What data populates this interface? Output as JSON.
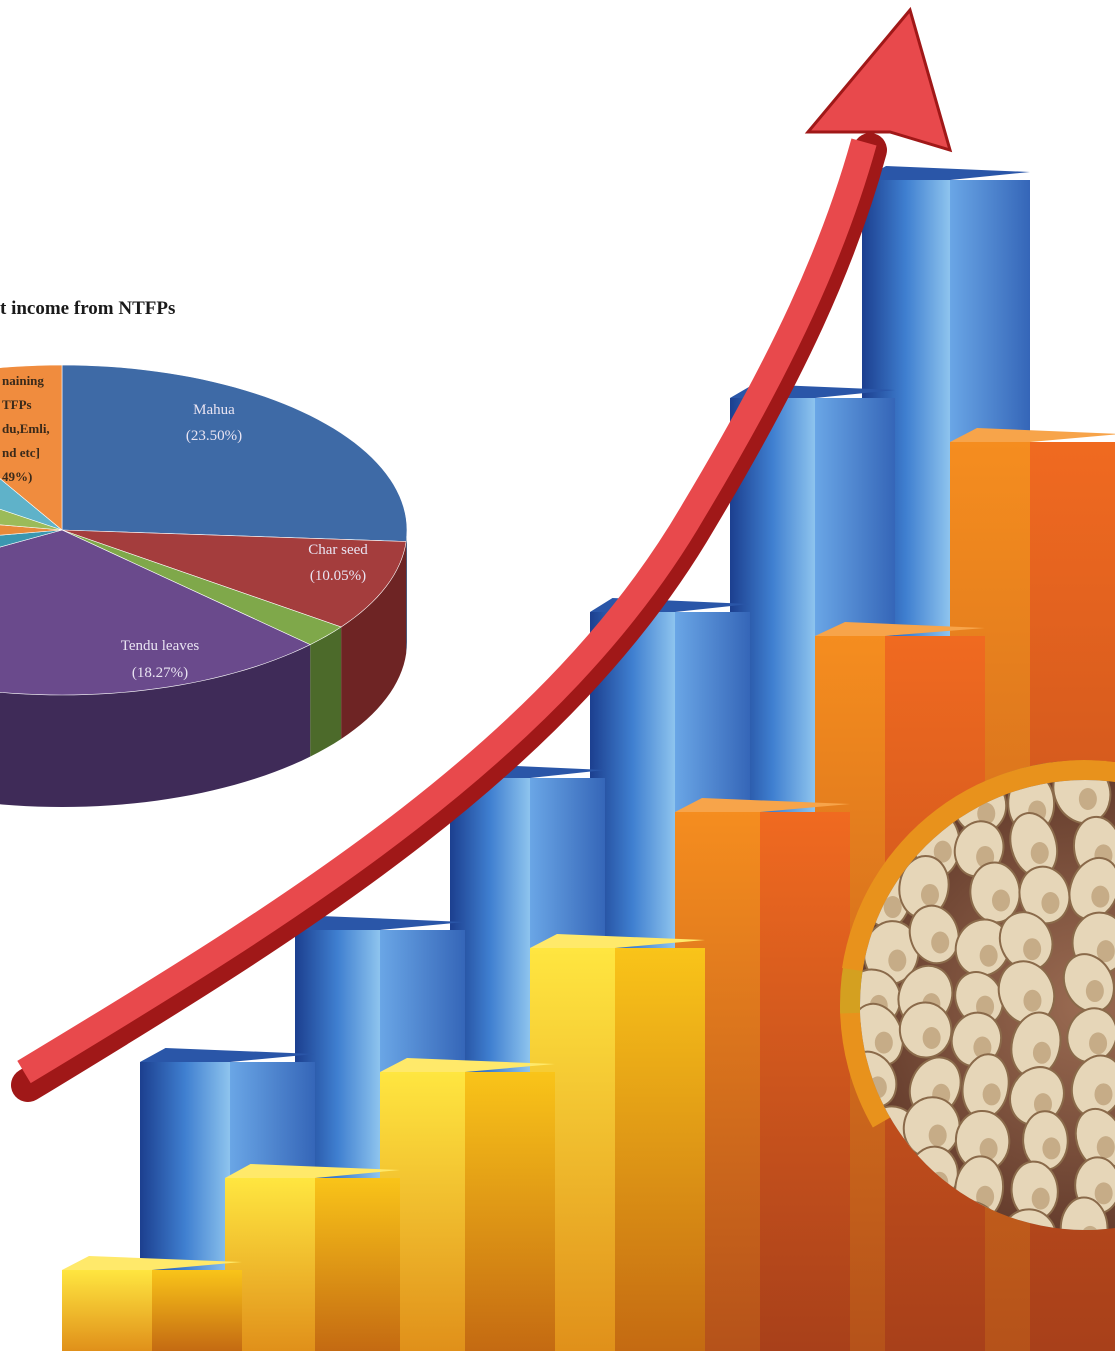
{
  "title": "t income from NTFPs",
  "pie_labels": [
    {
      "name": "Mahua",
      "share": "(23.50%)"
    },
    {
      "name": "Char seed",
      "share": "(10.05%)"
    },
    {
      "name": "Tendu leaves",
      "share": "(18.27%)"
    }
  ],
  "remaining_label": [
    "naining",
    "TFPs",
    "du,Emli,",
    "nd etc]",
    "49%)"
  ]
}
